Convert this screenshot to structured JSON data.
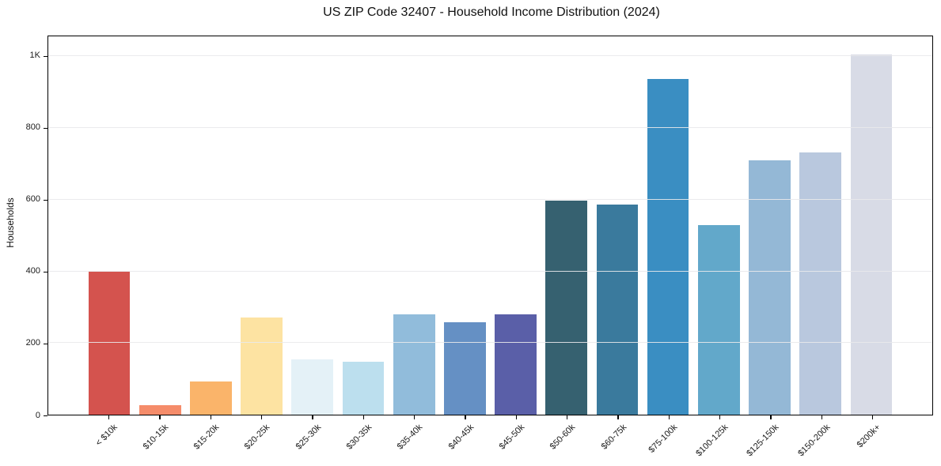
{
  "chart_data": {
    "type": "bar",
    "title": "US ZIP Code 32407 - Household Income Distribution (2024)",
    "xlabel": "",
    "ylabel": "Households",
    "categories": [
      "< $10k",
      "$10-15k",
      "$15-20k",
      "$20-25k",
      "$25-30k",
      "$30-35k",
      "$35-40k",
      "$40-45k",
      "$45-50k",
      "$50-60k",
      "$60-75k",
      "$75-100k",
      "$100-125k",
      "$125-150k",
      "$150-200k",
      "$200k+"
    ],
    "values": [
      398,
      26,
      92,
      271,
      155,
      147,
      281,
      258,
      279,
      597,
      586,
      938,
      529,
      709,
      731,
      1006
    ],
    "bar_colors": [
      "#d4534e",
      "#f58c6a",
      "#fab46a",
      "#fde3a2",
      "#e4f1f7",
      "#bcdfee",
      "#91bcdb",
      "#6590c4",
      "#5a5fa8",
      "#366170",
      "#3a7a9d",
      "#3a8ec2",
      "#62a8ca",
      "#94b8d6",
      "#b9c8de",
      "#d8dbe6"
    ],
    "yticks": [
      {
        "value": 0,
        "label": "0"
      },
      {
        "value": 200,
        "label": "200"
      },
      {
        "value": 400,
        "label": "400"
      },
      {
        "value": 600,
        "label": "600"
      },
      {
        "value": 800,
        "label": "800"
      },
      {
        "value": 1000,
        "label": "1K"
      }
    ],
    "ylim": [
      0,
      1056
    ],
    "xlim_units": [
      -1.2,
      16.2
    ],
    "bar_width_units": 0.82,
    "grid": true,
    "grid_color": "#e9e9eb",
    "legend": false,
    "frame_color": "#000000",
    "background_color": "#ffffff"
  }
}
